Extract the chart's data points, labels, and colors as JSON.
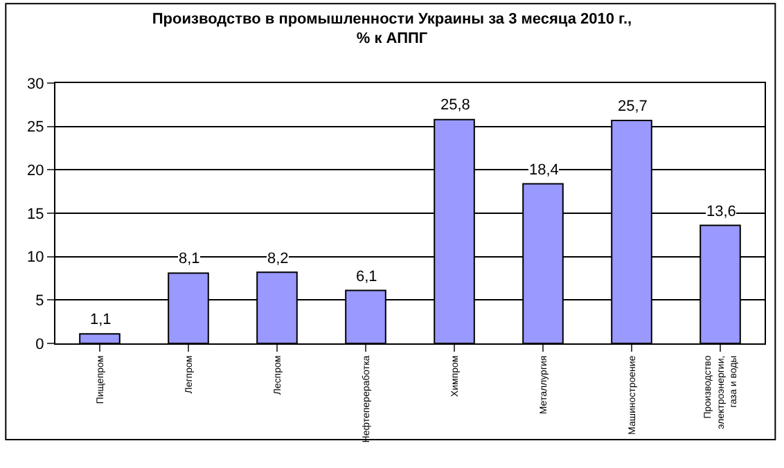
{
  "chart_data": {
    "type": "bar",
    "title": "Производство в промышленности Украины за 3 месяца 2010 г.,\n% к АППГ",
    "categories": [
      "Пищепром",
      "Легпром",
      "Леспром",
      "Нефтепереработка",
      "Химпром",
      "Металлургия",
      "Машиностроение",
      "Производство электроэнергии, газа и воды"
    ],
    "values": [
      1.1,
      8.1,
      8.2,
      6.1,
      25.8,
      18.4,
      25.7,
      13.6
    ],
    "value_labels": [
      "1,1",
      "8,1",
      "8,2",
      "6,1",
      "25,8",
      "18,4",
      "25,7",
      "13,6"
    ],
    "color": "#9999ff",
    "ylim": [
      0,
      30
    ],
    "yticks": [
      0,
      5,
      10,
      15,
      20,
      25,
      30
    ],
    "grid": "y",
    "legend": false
  }
}
